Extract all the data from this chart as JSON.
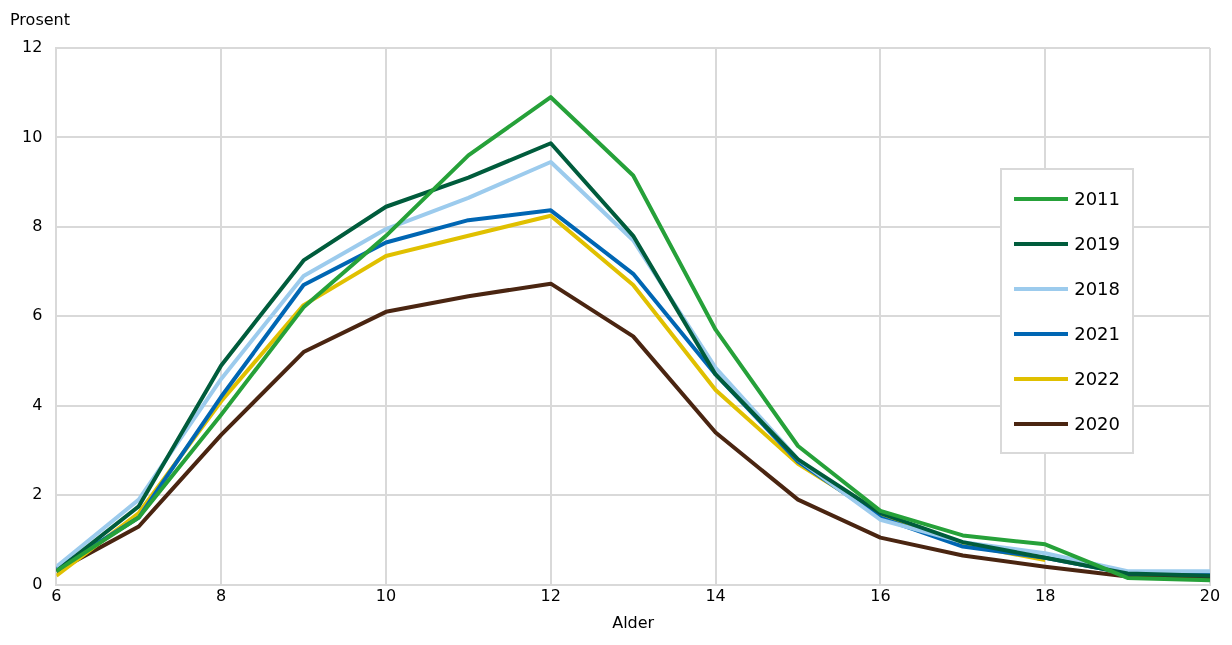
{
  "chart_data": {
    "type": "line",
    "xlabel": "Alder",
    "ylabel": "Prosent",
    "x": [
      6,
      7,
      8,
      9,
      10,
      11,
      12,
      13,
      14,
      15,
      16,
      17,
      18,
      19,
      20
    ],
    "xlim": [
      6,
      20
    ],
    "xticks": [
      6,
      8,
      10,
      12,
      14,
      16,
      18,
      20
    ],
    "ylim": [
      0,
      12
    ],
    "yticks": [
      0,
      2,
      4,
      6,
      8,
      10,
      12
    ],
    "grid": true,
    "legend": "right",
    "marker": "none",
    "line_style": "solid",
    "series": [
      {
        "name": "2011",
        "color": "#26a139",
        "values": [
          0.3,
          1.5,
          3.8,
          6.2,
          7.8,
          9.6,
          10.9,
          9.15,
          5.7,
          3.1,
          1.65,
          1.1,
          0.9,
          0.15,
          0.1
        ]
      },
      {
        "name": "2019",
        "color": "#005c3c",
        "values": [
          0.3,
          1.75,
          4.9,
          7.25,
          8.45,
          9.1,
          9.87,
          7.8,
          4.7,
          2.8,
          1.6,
          0.95,
          0.6,
          0.25,
          0.2
        ]
      },
      {
        "name": "2018",
        "color": "#9ccbed",
        "values": [
          0.4,
          1.9,
          4.6,
          6.9,
          7.95,
          8.65,
          9.45,
          7.7,
          4.85,
          2.8,
          1.45,
          0.95,
          0.7,
          0.3,
          0.3
        ]
      },
      {
        "name": "2021",
        "color": "#0066b3",
        "values": [
          0.35,
          1.5,
          4.2,
          6.7,
          7.65,
          8.15,
          8.37,
          6.95,
          4.7,
          2.75,
          1.5,
          0.85,
          0.6,
          0.25,
          0.25
        ]
      },
      {
        "name": "2022",
        "color": "#e0c000",
        "values": [
          0.2,
          1.6,
          4.1,
          6.25,
          7.35,
          7.8,
          8.25,
          6.7,
          4.35,
          2.7,
          1.55,
          0.9,
          0.55,
          null,
          null
        ]
      },
      {
        "name": "2020",
        "color": "#4a2511",
        "values": [
          0.3,
          1.3,
          3.35,
          5.2,
          6.1,
          6.45,
          6.73,
          5.55,
          3.4,
          1.9,
          1.05,
          0.65,
          0.4,
          0.18,
          0.15
        ]
      }
    ]
  }
}
